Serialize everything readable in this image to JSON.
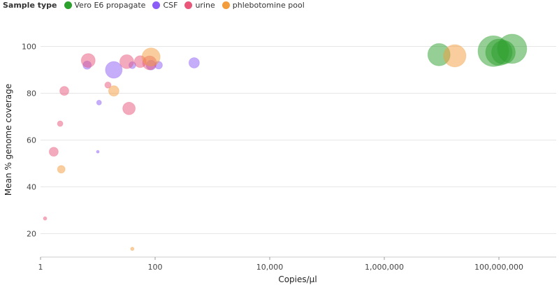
{
  "chart_data": {
    "type": "scatter",
    "title": "",
    "xlabel": "Copies/µl",
    "ylabel": "Mean % genome coverage",
    "x_scale": "log",
    "xlim": [
      1,
      1000000000
    ],
    "ylim": [
      10,
      110
    ],
    "x_ticks": [
      1,
      100,
      10000,
      1000000,
      100000000
    ],
    "x_tick_labels": [
      "1",
      "100",
      "10,000",
      "1,000,000",
      "100,000,000"
    ],
    "y_ticks": [
      20,
      40,
      60,
      80,
      100
    ],
    "y_tick_labels": [
      "20",
      "40",
      "60",
      "80",
      "100"
    ],
    "grid": "horizontal",
    "legend": {
      "title": "Sample type",
      "placement": "top-left"
    },
    "series": [
      {
        "name": "Vero E6 propagate",
        "color": "#2ca02c",
        "points": [
          {
            "x": 9000000,
            "y": 96.5,
            "size": 16
          },
          {
            "x": 80000000,
            "y": 98,
            "size": 22
          },
          {
            "x": 100000000,
            "y": 97.5,
            "size": 19
          },
          {
            "x": 120000000,
            "y": 97.5,
            "size": 17
          },
          {
            "x": 170000000,
            "y": 99,
            "size": 21
          }
        ]
      },
      {
        "name": "CSF",
        "color": "#8b5cf6",
        "points": [
          {
            "x": 6.5,
            "y": 92,
            "size": 6
          },
          {
            "x": 10,
            "y": 55,
            "size": 2
          },
          {
            "x": 10.5,
            "y": 76,
            "size": 3.5
          },
          {
            "x": 19,
            "y": 90,
            "size": 12
          },
          {
            "x": 40,
            "y": 92,
            "size": 5
          },
          {
            "x": 85,
            "y": 92,
            "size": 7
          },
          {
            "x": 115,
            "y": 92,
            "size": 5.5
          },
          {
            "x": 480,
            "y": 93,
            "size": 7.5
          }
        ]
      },
      {
        "name": "urine",
        "color": "#e8567a",
        "points": [
          {
            "x": 1.2,
            "y": 26.5,
            "size": 2.5
          },
          {
            "x": 1.7,
            "y": 55,
            "size": 6.5
          },
          {
            "x": 2.2,
            "y": 67,
            "size": 4
          },
          {
            "x": 2.6,
            "y": 81,
            "size": 6.5
          },
          {
            "x": 6.8,
            "y": 94,
            "size": 10
          },
          {
            "x": 15,
            "y": 83.5,
            "size": 4.5
          },
          {
            "x": 32,
            "y": 93.5,
            "size": 10
          },
          {
            "x": 35,
            "y": 73.5,
            "size": 9
          },
          {
            "x": 55,
            "y": 93.5,
            "size": 8.5
          },
          {
            "x": 80,
            "y": 93,
            "size": 10
          }
        ]
      },
      {
        "name": "phlebotomine pool",
        "color": "#f39c3c",
        "points": [
          {
            "x": 2.3,
            "y": 47.5,
            "size": 5.5
          },
          {
            "x": 19,
            "y": 81,
            "size": 7.5
          },
          {
            "x": 40,
            "y": 13.5,
            "size": 2.5
          },
          {
            "x": 85,
            "y": 95.5,
            "size": 13
          },
          {
            "x": 17000000,
            "y": 96,
            "size": 16
          }
        ]
      }
    ]
  }
}
